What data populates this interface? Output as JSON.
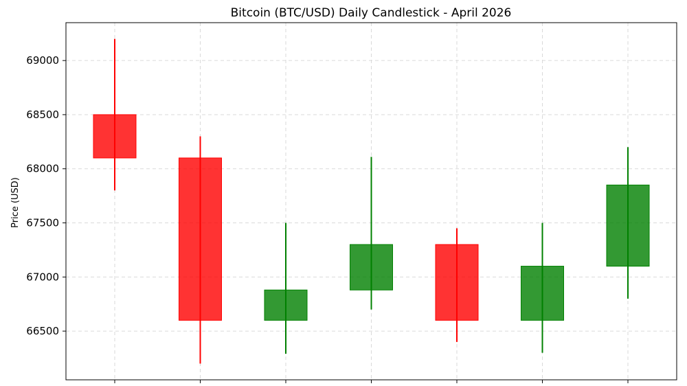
{
  "chart_data": {
    "type": "candlestick",
    "title": "Bitcoin (BTC/USD) Daily Candlestick - April 2026",
    "xlabel": "",
    "ylabel": "Price (USD)",
    "ylim": [
      66050,
      69350
    ],
    "yticks": [
      66500,
      67000,
      67500,
      68000,
      68500,
      69000
    ],
    "grid": true,
    "up_color": "#008000",
    "down_color": "#ff0000",
    "candles": [
      {
        "open": 68500,
        "high": 69200,
        "low": 67800,
        "close": 68100
      },
      {
        "open": 68100,
        "high": 68300,
        "low": 66200,
        "close": 66600
      },
      {
        "open": 66600,
        "high": 67500,
        "low": 66290,
        "close": 66880
      },
      {
        "open": 66880,
        "high": 68110,
        "low": 66700,
        "close": 67300
      },
      {
        "open": 67300,
        "high": 67450,
        "low": 66400,
        "close": 66600
      },
      {
        "open": 66600,
        "high": 67500,
        "low": 66300,
        "close": 67100
      },
      {
        "open": 67100,
        "high": 68200,
        "low": 66800,
        "close": 67850
      }
    ]
  }
}
